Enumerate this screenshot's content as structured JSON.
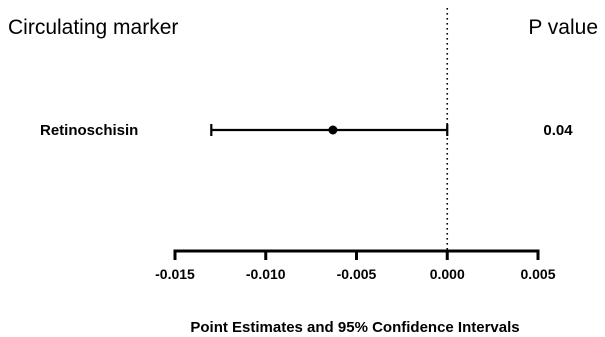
{
  "chart_data": {
    "type": "forest",
    "title": "",
    "column_headers": {
      "left": "Circulating marker",
      "right": "P value"
    },
    "xlabel": "Point Estimates and 95% Confidence Intervals",
    "xlim": [
      -0.015,
      0.005
    ],
    "xticks": [
      -0.015,
      -0.01,
      -0.005,
      0.0,
      0.005
    ],
    "xtick_labels": [
      "-0.015",
      "-0.010",
      "-0.005",
      "0.000",
      "0.005"
    ],
    "reference_line": 0.0,
    "reference_line_style": "dotted",
    "rows": [
      {
        "label": "Retinoschisin",
        "estimate": -0.0063,
        "ci_low": -0.013,
        "ci_high": 0.0,
        "p_value": "0.04"
      }
    ],
    "colors": {
      "ink": "#000000",
      "background": "#ffffff"
    }
  }
}
